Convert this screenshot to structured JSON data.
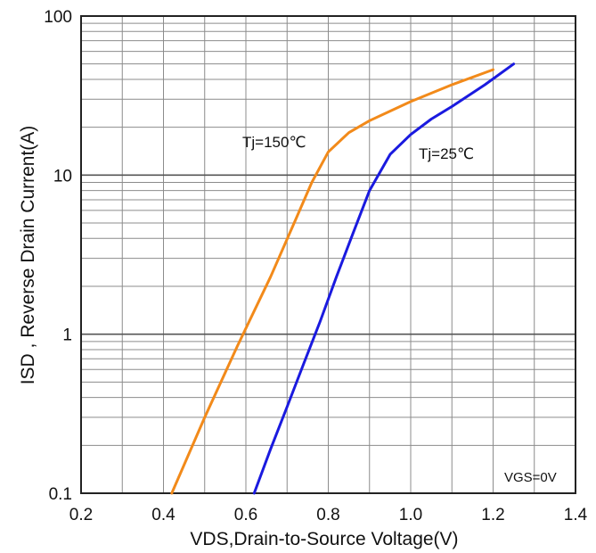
{
  "chart_data": {
    "type": "line",
    "title": "",
    "xlabel": "VDS,Drain-to-Source Voltage(V)",
    "ylabel": "ISD , Reverse Drain Current(A)",
    "xlim": [
      0.2,
      1.4
    ],
    "ylim": [
      0.1,
      100
    ],
    "yscale": "log",
    "grid": true,
    "x_ticks": [
      "0.2",
      "0.4",
      "0.6",
      "0.8",
      "1.0",
      "1.2",
      "1.4"
    ],
    "y_ticks": [
      "0.1",
      "1",
      "10",
      "100"
    ],
    "annotation": "VGS=0V",
    "series": [
      {
        "name": "Tj=150℃",
        "color": "#f28a1a",
        "x": [
          0.42,
          0.5,
          0.58,
          0.66,
          0.72,
          0.76,
          0.8,
          0.85,
          0.9,
          1.0,
          1.1,
          1.2
        ],
        "y": [
          0.1,
          0.3,
          0.85,
          2.3,
          5.2,
          9.0,
          14.0,
          18.5,
          22.0,
          29.0,
          37.0,
          46.0
        ]
      },
      {
        "name": "Tj=25℃",
        "color": "#1a1adf",
        "x": [
          0.62,
          0.66,
          0.7,
          0.74,
          0.78,
          0.82,
          0.86,
          0.9,
          0.95,
          1.0,
          1.05,
          1.1,
          1.18,
          1.25
        ],
        "y": [
          0.1,
          0.19,
          0.35,
          0.65,
          1.2,
          2.3,
          4.3,
          8.0,
          13.5,
          18.0,
          22.5,
          27.0,
          37.0,
          50.0
        ]
      }
    ]
  }
}
